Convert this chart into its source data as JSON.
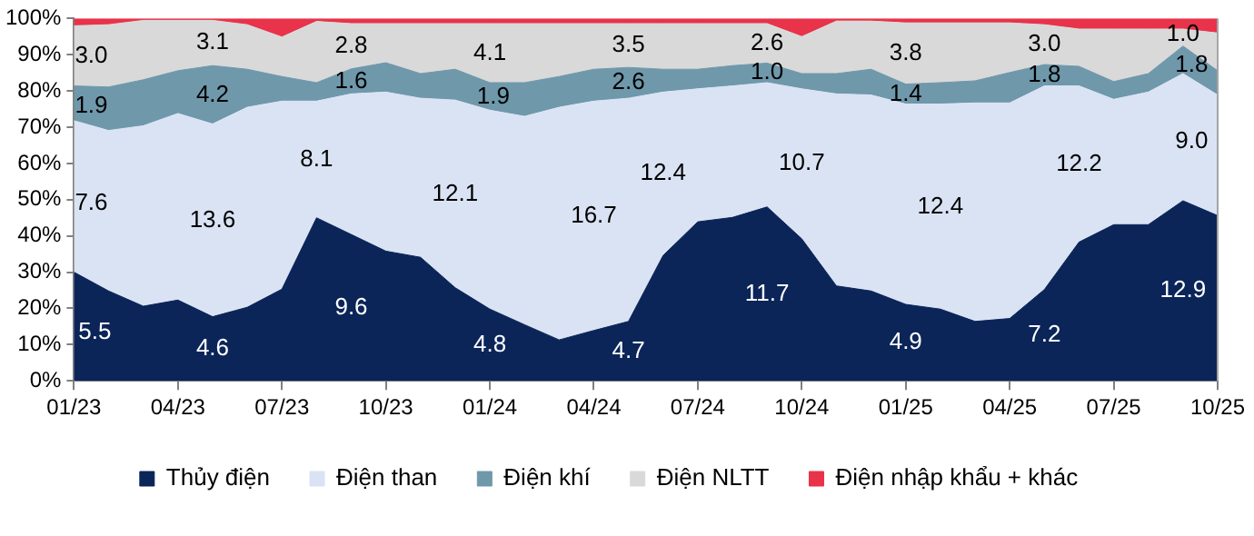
{
  "chart_data": {
    "type": "area",
    "stacked": true,
    "grid": false,
    "legend": "bottom",
    "marker": "none",
    "x": [
      "2023-01",
      "2023-02",
      "2023-03",
      "2023-04",
      "2023-05",
      "2023-06",
      "2023-07",
      "2023-08",
      "2023-09",
      "2023-10",
      "2023-11",
      "2023-12",
      "2024-01",
      "2024-02",
      "2024-03",
      "2024-04",
      "2024-05",
      "2024-06",
      "2024-07",
      "2024-08",
      "2024-09",
      "2024-10",
      "2024-11",
      "2024-12",
      "2025-01",
      "2025-02",
      "2025-03",
      "2025-04",
      "2025-05",
      "2025-06",
      "2025-07",
      "2025-08",
      "2025-09",
      "2025-10"
    ],
    "series": [
      {
        "name": "Thủy điện",
        "color": "#0b2559",
        "values": [
          30,
          24.8,
          20.6,
          22.3,
          17.7,
          20.3,
          25.3,
          45,
          40.4,
          35.8,
          34.1,
          25.7,
          19.8,
          15.5,
          11.3,
          13.9,
          16.4,
          34.6,
          43.9,
          45.1,
          48,
          39.2,
          26.2,
          24.8,
          21.1,
          19.8,
          16.4,
          17.2,
          25.2,
          38.3,
          43.1,
          43.1,
          49.7,
          45.6
        ]
      },
      {
        "name": "Điện than",
        "color": "#dae3f3",
        "values": [
          41.8,
          44.3,
          49.8,
          51.5,
          53.2,
          55.2,
          51.9,
          32.2,
          38.8,
          43.9,
          43.9,
          51.8,
          54.9,
          57.5,
          64.2,
          63.3,
          61.6,
          45.1,
          36.7,
          36.3,
          34.3,
          41.4,
          53,
          54.1,
          55.3,
          56.6,
          60.3,
          59.5,
          56.2,
          43.1,
          34.6,
          36.6,
          35.1,
          33.3
        ]
      },
      {
        "name": "Điện khí",
        "color": "#6f98ab",
        "values": [
          9.6,
          12,
          12.7,
          11.8,
          16.1,
          10.5,
          6.8,
          5.1,
          6.9,
          8.1,
          6.8,
          8.5,
          7.6,
          9.3,
          8.5,
          8.8,
          8.5,
          6.3,
          5.4,
          5.6,
          5.4,
          4.2,
          5.6,
          7.1,
          5.5,
          5.9,
          6.1,
          8.4,
          5.9,
          5.4,
          4.9,
          5.1,
          7.6,
          6.7
        ]
      },
      {
        "name": "Điện NLTT",
        "color": "#d9d9d9",
        "values": [
          16.6,
          17.2,
          16.4,
          13.9,
          12.5,
          12.3,
          10.9,
          16.9,
          12.5,
          10.8,
          13.8,
          12.6,
          16.3,
          16.3,
          14.6,
          12.6,
          12.1,
          12.6,
          12.6,
          11.6,
          10.9,
          10.2,
          14.5,
          13.3,
          16.9,
          16.5,
          16,
          13.7,
          11,
          10.3,
          14.5,
          12.3,
          4.7,
          10.4
        ]
      },
      {
        "name": "Điện nhập khẩu + khác",
        "color": "#e8334a",
        "values": [
          2,
          1.7,
          0.5,
          0.5,
          0.5,
          1.7,
          5.1,
          0.8,
          1.4,
          1.4,
          1.4,
          1.4,
          1.4,
          1.4,
          1.4,
          1.4,
          1.4,
          1.4,
          1.4,
          1.4,
          1.4,
          5,
          0.7,
          0.7,
          1.2,
          1.2,
          1.2,
          1.2,
          1.7,
          2.9,
          2.9,
          2.9,
          2.9,
          4
        ]
      }
    ],
    "xlim": [
      "2023-01",
      "2025-10"
    ],
    "xticks": [
      {
        "value": "2023-01",
        "label": "01/23"
      },
      {
        "value": "2023-04",
        "label": "04/23"
      },
      {
        "value": "2023-07",
        "label": "07/23"
      },
      {
        "value": "2023-10",
        "label": "10/23"
      },
      {
        "value": "2024-01",
        "label": "01/24"
      },
      {
        "value": "2024-04",
        "label": "04/24"
      },
      {
        "value": "2024-07",
        "label": "07/24"
      },
      {
        "value": "2024-10",
        "label": "10/24"
      },
      {
        "value": "2025-01",
        "label": "01/25"
      },
      {
        "value": "2025-04",
        "label": "04/25"
      },
      {
        "value": "2025-07",
        "label": "07/25"
      },
      {
        "value": "2025-10",
        "label": "10/25"
      }
    ],
    "ylim": [
      0,
      100
    ],
    "yticks": [
      {
        "value": 0,
        "label": "0%"
      },
      {
        "value": 10,
        "label": "10%"
      },
      {
        "value": 20,
        "label": "20%"
      },
      {
        "value": 30,
        "label": "30%"
      },
      {
        "value": 40,
        "label": "40%"
      },
      {
        "value": 50,
        "label": "50%"
      },
      {
        "value": 60,
        "label": "60%"
      },
      {
        "value": 70,
        "label": "70%"
      },
      {
        "value": 80,
        "label": "80%"
      },
      {
        "value": 90,
        "label": "90%"
      },
      {
        "value": 100,
        "label": "100%"
      }
    ],
    "annotations": [
      "3.0",
      "1.9",
      "7.6",
      "5.5",
      "3.1",
      "4.2",
      "13.6",
      "4.6",
      "2.8",
      "1.6",
      "8.1",
      "9.6",
      "4.1",
      "1.9",
      "12.1",
      "4.8",
      "3.5",
      "2.6",
      "16.7",
      "4.7",
      "12.4",
      "2.6",
      "1.0",
      "10.7",
      "11.7",
      "3.8",
      "1.4",
      "12.4",
      "4.9",
      "3.0",
      "1.8",
      "12.2",
      "7.2",
      "1.0",
      "1.8",
      "9.0",
      "12.9"
    ]
  }
}
